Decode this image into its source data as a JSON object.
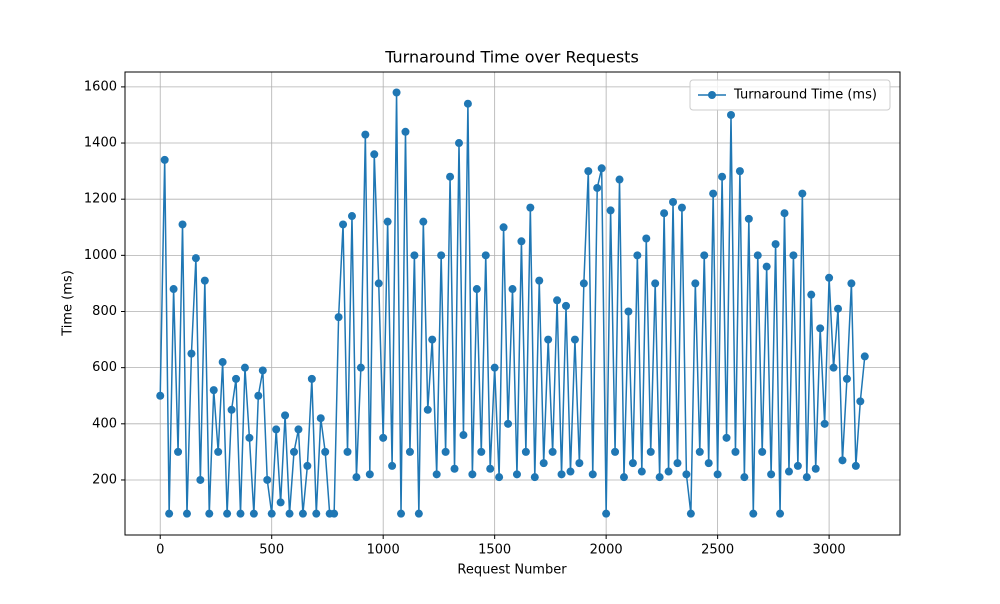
{
  "chart_data": {
    "type": "line",
    "title": "Turnaround Time over Requests",
    "xlabel": "Request Number",
    "ylabel": "Time (ms)",
    "x": [
      0,
      20,
      40,
      60,
      80,
      100,
      120,
      140,
      160,
      180,
      200,
      220,
      240,
      260,
      280,
      300,
      320,
      340,
      360,
      380,
      400,
      420,
      440,
      460,
      480,
      500,
      520,
      540,
      560,
      580,
      600,
      620,
      640,
      660,
      680,
      700,
      720,
      740,
      760,
      780,
      800,
      820,
      840,
      860,
      880,
      900,
      920,
      940,
      960,
      980,
      1000,
      1020,
      1040,
      1060,
      1080,
      1100,
      1120,
      1140,
      1160,
      1180,
      1200,
      1220,
      1240,
      1260,
      1280,
      1300,
      1320,
      1340,
      1360,
      1380,
      1400,
      1420,
      1440,
      1460,
      1480,
      1500,
      1520,
      1540,
      1560,
      1580,
      1600,
      1620,
      1640,
      1660,
      1680,
      1700,
      1720,
      1740,
      1760,
      1780,
      1800,
      1820,
      1840,
      1860,
      1880,
      1900,
      1920,
      1940,
      1960,
      1980,
      2000,
      2020,
      2040,
      2060,
      2080,
      2100,
      2120,
      2140,
      2160,
      2180,
      2200,
      2220,
      2240,
      2260,
      2280,
      2300,
      2320,
      2340,
      2360,
      2380,
      2400,
      2420,
      2440,
      2460,
      2480,
      2500,
      2520,
      2540,
      2560,
      2580,
      2600,
      2620,
      2640,
      2660,
      2680,
      2700,
      2720,
      2740,
      2760,
      2780,
      2800,
      2820,
      2840,
      2860,
      2880,
      2900,
      2920,
      2940,
      2960,
      2980,
      3000,
      3020,
      3040,
      3060,
      3080,
      3100,
      3120,
      3140,
      3160
    ],
    "series": [
      {
        "name": "Turnaround Time (ms)",
        "color": "#1f77b4",
        "values": [
          500,
          1340,
          80,
          880,
          300,
          1110,
          80,
          650,
          990,
          200,
          910,
          80,
          520,
          300,
          620,
          80,
          450,
          560,
          80,
          600,
          350,
          80,
          500,
          590,
          200,
          80,
          380,
          120,
          430,
          80,
          300,
          380,
          80,
          250,
          560,
          80,
          420,
          300,
          80,
          80,
          780,
          1110,
          300,
          1140,
          210,
          600,
          1430,
          220,
          1360,
          900,
          350,
          1120,
          250,
          1580,
          80,
          1440,
          300,
          1000,
          80,
          1120,
          450,
          700,
          220,
          1000,
          300,
          1280,
          240,
          1400,
          360,
          1540,
          220,
          880,
          300,
          1000,
          240,
          600,
          210,
          1100,
          400,
          880,
          220,
          1050,
          300,
          1170,
          210,
          910,
          260,
          700,
          300,
          840,
          220,
          820,
          230,
          700,
          260,
          900,
          1300,
          220,
          1240,
          1310,
          80,
          1160,
          300,
          1270,
          210,
          800,
          260,
          1000,
          230,
          1060,
          300,
          900,
          210,
          1150,
          230,
          1190,
          260,
          1170,
          220,
          80,
          900,
          300,
          1000,
          260,
          1220,
          220,
          1280,
          350,
          1500,
          300,
          1300,
          210,
          1130,
          80,
          1000,
          300,
          960,
          220,
          1040,
          80,
          1150,
          230,
          1000,
          250,
          1220,
          210,
          860,
          240,
          740,
          400,
          920,
          600,
          810,
          270,
          560,
          900,
          250,
          480,
          640
        ]
      }
    ],
    "xlim": [
      -158,
      3318
    ],
    "ylim": [
      4,
      1653
    ],
    "xticks": [
      0,
      500,
      1000,
      1500,
      2000,
      2500,
      3000
    ],
    "yticks": [
      200,
      400,
      600,
      800,
      1000,
      1200,
      1400,
      1600
    ],
    "grid": true,
    "legend": "upper right"
  }
}
